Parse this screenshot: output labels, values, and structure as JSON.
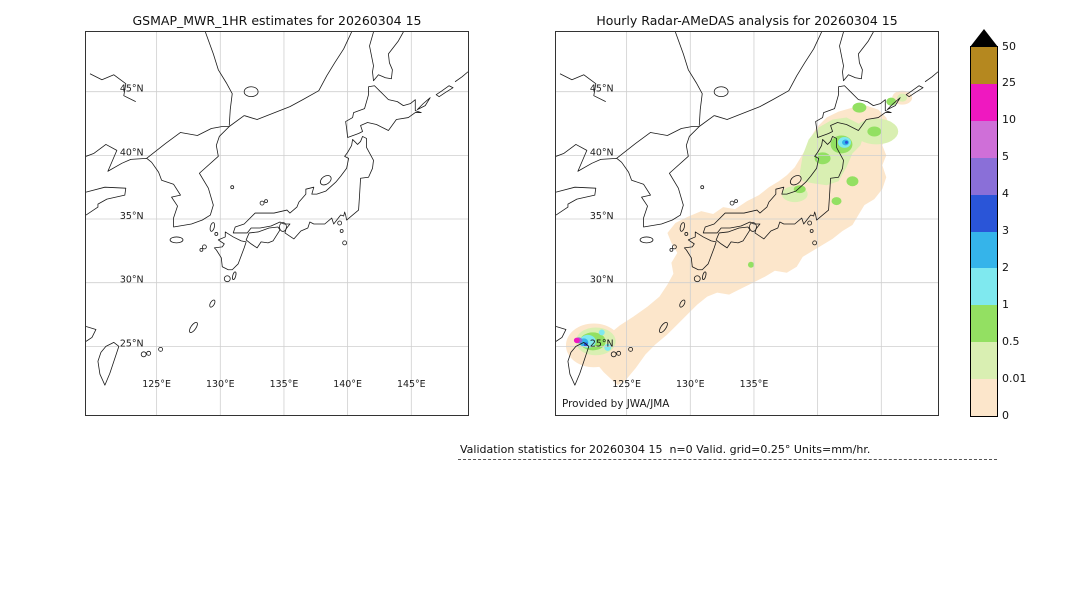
{
  "panels": {
    "left": {
      "title": "GSMAP_MWR_1HR estimates for 20260304 15",
      "lat_labels": [
        "45°N",
        "40°N",
        "35°N",
        "30°N",
        "25°N"
      ],
      "lon_labels": [
        "125°E",
        "130°E",
        "135°E",
        "140°E",
        "145°E"
      ]
    },
    "right": {
      "title": "Hourly Radar-AMeDAS analysis for 20260304 15",
      "lat_labels": [
        "45°N",
        "40°N",
        "35°N",
        "30°N",
        "25°N"
      ],
      "lon_labels": [
        "125°E",
        "130°E",
        "135°E"
      ],
      "credit": "Provided by JWA/JMA"
    }
  },
  "colorbar": {
    "tick_labels": [
      "50",
      "25",
      "10",
      "5",
      "4",
      "3",
      "2",
      "1",
      "0.5",
      "0.01",
      "0"
    ],
    "colors_top_to_bottom": [
      "#b5881f",
      "#ef18c0",
      "#cf6fd8",
      "#8a6fd8",
      "#2a55d8",
      "#35b4ea",
      "#7fe9ef",
      "#93e062",
      "#d9efb2",
      "#fce6cb"
    ],
    "overflow_triangle_color": "#000000"
  },
  "caption": "Validation statistics for 20260304 15  n=0 Valid. grid=0.25° Units=mm/hr."
}
